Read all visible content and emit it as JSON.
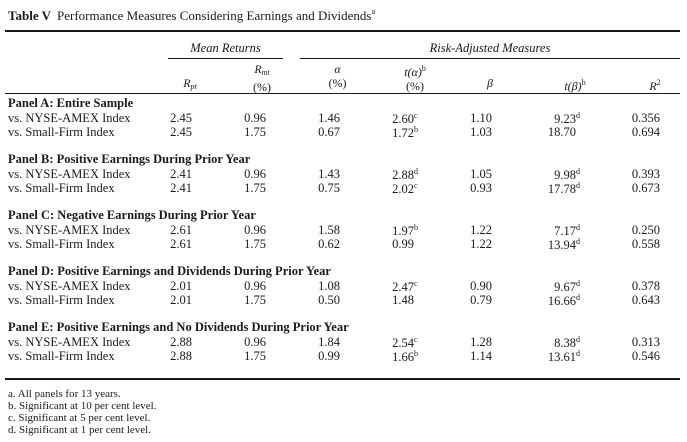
{
  "table": {
    "label": "Table V",
    "title": "Performance Measures Considering Earnings and Dividends",
    "title_note": "a",
    "group_headers": {
      "mean_returns": "Mean Returns",
      "risk_adjusted": "Risk-Adjusted Measures"
    },
    "columns": {
      "rpt": {
        "sym": "R",
        "sub": "pt"
      },
      "rmt": {
        "sym": "R",
        "sub": "mt",
        "unit": "(%)"
      },
      "alpha": {
        "sym": "α",
        "unit": "(%)"
      },
      "t_alpha": {
        "sym": "t(α)",
        "note": "b",
        "unit": "(%)"
      },
      "beta": {
        "sym": "β"
      },
      "t_beta": {
        "sym": "t(β)",
        "note": "b"
      },
      "r2": {
        "sym": "R",
        "sup": "2"
      }
    },
    "panels": [
      {
        "title": "Panel A: Entire Sample",
        "rows": [
          {
            "label": "vs. NYSE-AMEX Index",
            "rpt": "2.45",
            "rmt": "0.96",
            "alpha": "1.46",
            "t_alpha": "2.60",
            "t_alpha_note": "c",
            "beta": "1.10",
            "t_beta": "9.23",
            "t_beta_note": "d",
            "r2": "0.356"
          },
          {
            "label": "vs. Small-Firm Index",
            "rpt": "2.45",
            "rmt": "1.75",
            "alpha": "0.67",
            "t_alpha": "1.72",
            "t_alpha_note": "b",
            "beta": "1.03",
            "t_beta": "18.70",
            "t_beta_note": "",
            "r2": "0.694"
          }
        ]
      },
      {
        "title": "Panel B: Positive Earnings During Prior Year",
        "rows": [
          {
            "label": "vs. NYSE-AMEX Index",
            "rpt": "2.41",
            "rmt": "0.96",
            "alpha": "1.43",
            "t_alpha": "2.88",
            "t_alpha_note": "d",
            "beta": "1.05",
            "t_beta": "9.98",
            "t_beta_note": "d",
            "r2": "0.393"
          },
          {
            "label": "vs. Small-Firm Index",
            "rpt": "2.41",
            "rmt": "1.75",
            "alpha": "0.75",
            "t_alpha": "2.02",
            "t_alpha_note": "c",
            "beta": "0.93",
            "t_beta": "17.78",
            "t_beta_note": "d",
            "r2": "0.673"
          }
        ]
      },
      {
        "title": "Panel C: Negative Earnings During Prior Year",
        "rows": [
          {
            "label": "vs. NYSE-AMEX Index",
            "rpt": "2.61",
            "rmt": "0.96",
            "alpha": "1.58",
            "t_alpha": "1.97",
            "t_alpha_note": "b",
            "beta": "1.22",
            "t_beta": "7.17",
            "t_beta_note": "d",
            "r2": "0.250"
          },
          {
            "label": "vs. Small-Firm Index",
            "rpt": "2.61",
            "rmt": "1.75",
            "alpha": "0.62",
            "t_alpha": "0.99",
            "t_alpha_note": "",
            "beta": "1.22",
            "t_beta": "13.94",
            "t_beta_note": "d",
            "r2": "0.558"
          }
        ]
      },
      {
        "title": "Panel D: Positive Earnings and Dividends During Prior Year",
        "rows": [
          {
            "label": "vs. NYSE-AMEX Index",
            "rpt": "2.01",
            "rmt": "0.96",
            "alpha": "1.08",
            "t_alpha": "2.47",
            "t_alpha_note": "c",
            "beta": "0.90",
            "t_beta": "9.67",
            "t_beta_note": "d",
            "r2": "0.378"
          },
          {
            "label": "vs. Small-Firm Index",
            "rpt": "2.01",
            "rmt": "1.75",
            "alpha": "0.50",
            "t_alpha": "1.48",
            "t_alpha_note": "",
            "beta": "0.79",
            "t_beta": "16.66",
            "t_beta_note": "d",
            "r2": "0.643"
          }
        ]
      },
      {
        "title": "Panel E: Positive Earnings and No Dividends During Prior Year",
        "rows": [
          {
            "label": "vs. NYSE-AMEX Index",
            "rpt": "2.88",
            "rmt": "0.96",
            "alpha": "1.84",
            "t_alpha": "2.54",
            "t_alpha_note": "c",
            "beta": "1.28",
            "t_beta": "8.38",
            "t_beta_note": "d",
            "r2": "0.313"
          },
          {
            "label": "vs. Small-Firm Index",
            "rpt": "2.88",
            "rmt": "1.75",
            "alpha": "0.99",
            "t_alpha": "1.66",
            "t_alpha_note": "b",
            "beta": "1.14",
            "t_beta": "13.61",
            "t_beta_note": "d",
            "r2": "0.546"
          }
        ]
      }
    ],
    "footnotes": [
      "a. All panels for 13 years.",
      "b. Significant at 10 per cent level.",
      "c. Significant at 5 per cent level.",
      "d. Significant at 1 per cent level."
    ]
  }
}
